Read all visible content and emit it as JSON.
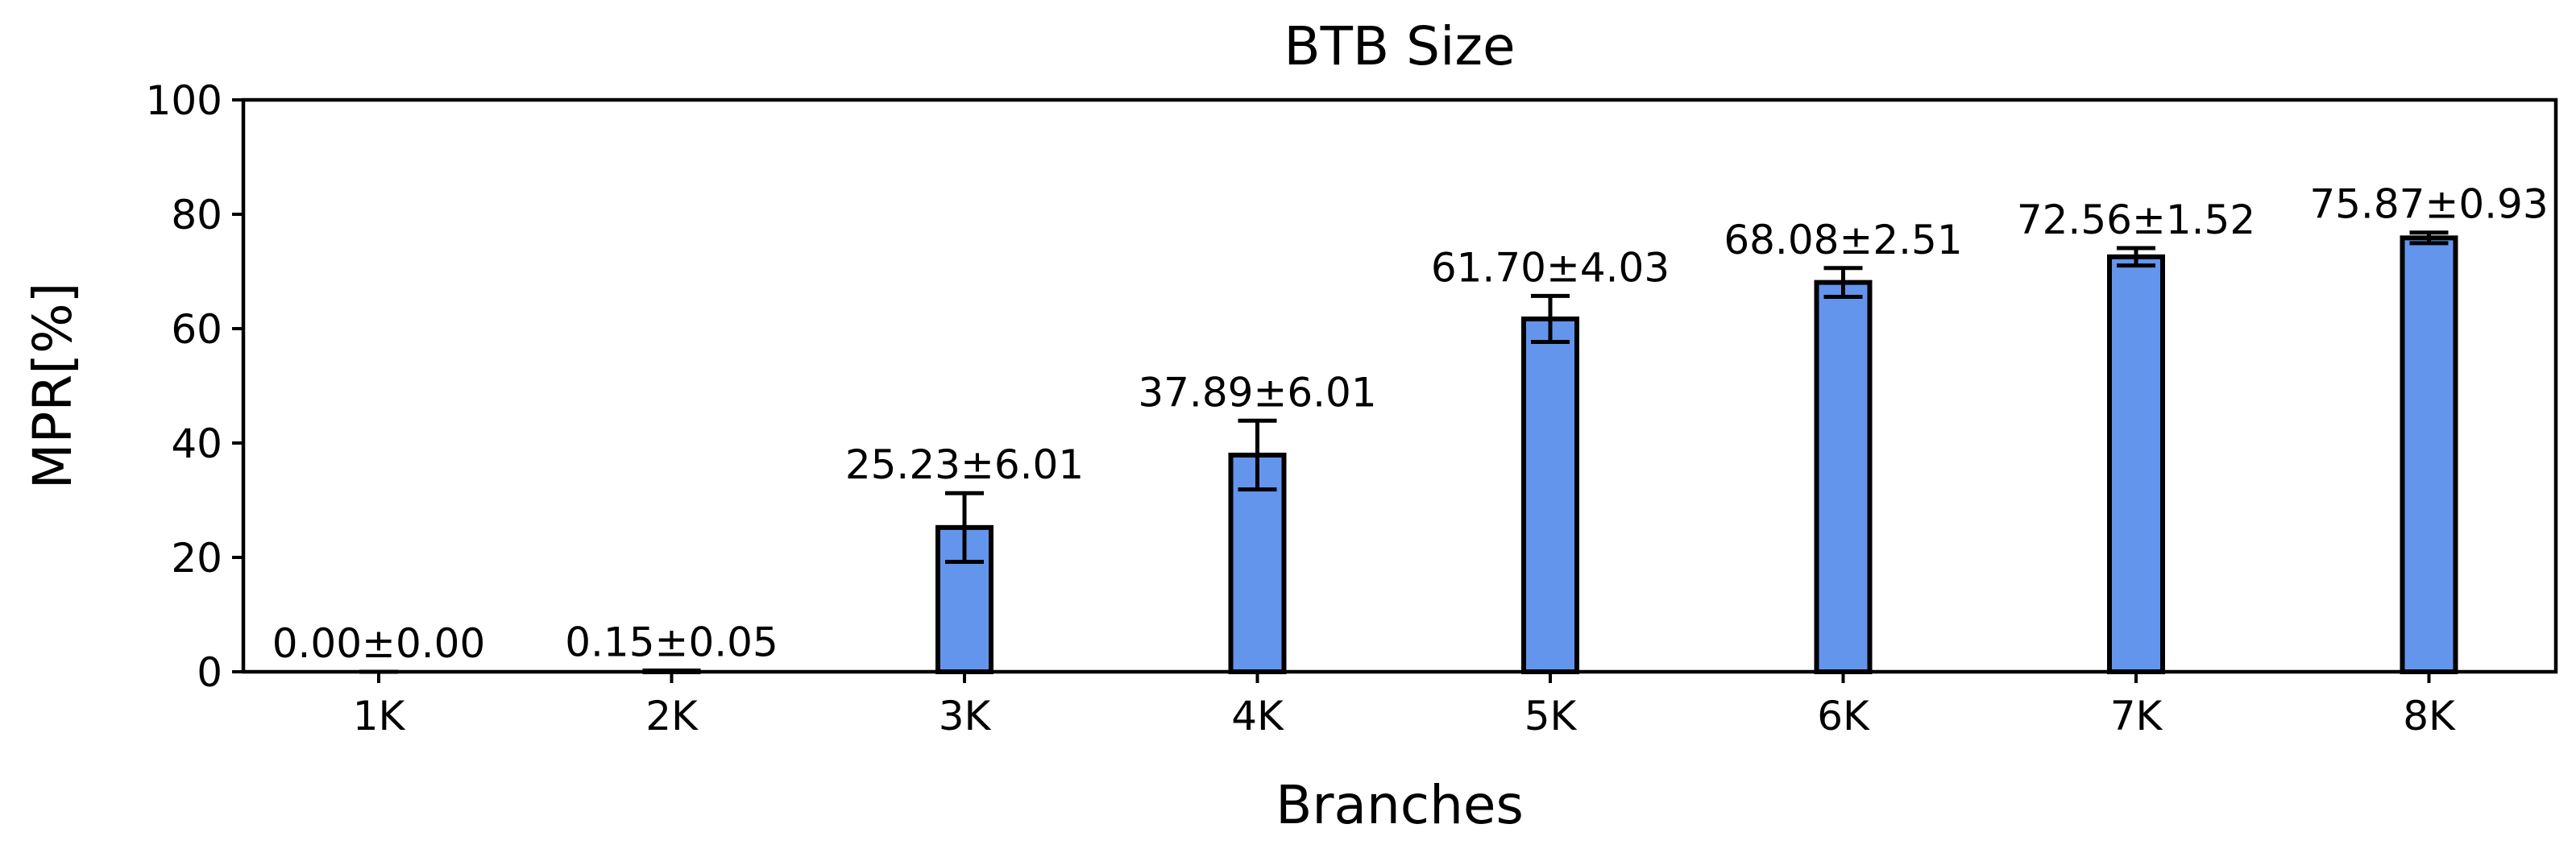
{
  "chart_data": {
    "type": "bar",
    "title": "BTB Size",
    "xlabel": "Branches",
    "ylabel": "MPR[%]",
    "ylim": [
      0,
      100
    ],
    "yticks": [
      0,
      20,
      40,
      60,
      80,
      100
    ],
    "categories": [
      "1K",
      "2K",
      "3K",
      "4K",
      "5K",
      "6K",
      "7K",
      "8K"
    ],
    "values": [
      0.0,
      0.15,
      25.23,
      37.89,
      61.7,
      68.08,
      72.56,
      75.87
    ],
    "errors": [
      0.0,
      0.05,
      6.01,
      6.01,
      4.03,
      2.51,
      1.52,
      0.93
    ],
    "data_labels": [
      "0.00±0.00",
      "0.15±0.05",
      "25.23±6.01",
      "37.89±6.01",
      "61.70±4.03",
      "68.08±2.51",
      "72.56±1.52",
      "75.87±0.93"
    ],
    "bar_color": "#6495ED",
    "grid": false,
    "legend": "none"
  }
}
